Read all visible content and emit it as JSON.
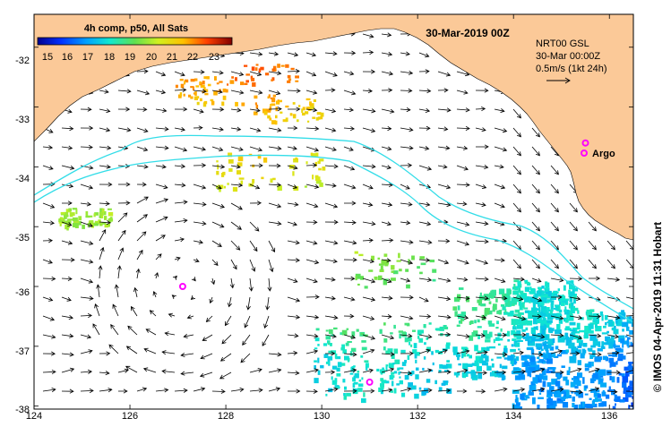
{
  "colorbar": {
    "title": "4h comp, p50, All Sats",
    "tick_labels": [
      "15",
      "16",
      "17",
      "18",
      "19",
      "20",
      "21",
      "22",
      "23"
    ],
    "range": [
      14.5,
      23.8
    ]
  },
  "date_title": "30-Mar-2019 00Z",
  "info": {
    "line1": "NRT00 GSL",
    "line2": "30-Mar 00:00Z",
    "line3": "0.5m/s (1kt 24h)"
  },
  "argo_label": "Argo",
  "credit": "© IMOS 04-Apr-2019 11:31 Hobart",
  "axes": {
    "x_ticks": [
      "124",
      "126",
      "128",
      "130",
      "132",
      "134",
      "136"
    ],
    "y_ticks": [
      "-32",
      "-33",
      "-34",
      "-35",
      "-36",
      "-37",
      "-38"
    ],
    "lon_range": [
      124,
      136.5
    ],
    "lat_range": [
      -31.45,
      -38.05
    ]
  },
  "argo_floats": [
    {
      "lon": 135.5,
      "lat": -33.6
    },
    {
      "lon": 127.1,
      "lat": -36.0
    },
    {
      "lon": 131.0,
      "lat": -37.6
    }
  ],
  "colors": {
    "land": "#fbc998",
    "isobath": "#33dde8",
    "argo": "#ff00ff",
    "frame": "#000000"
  }
}
